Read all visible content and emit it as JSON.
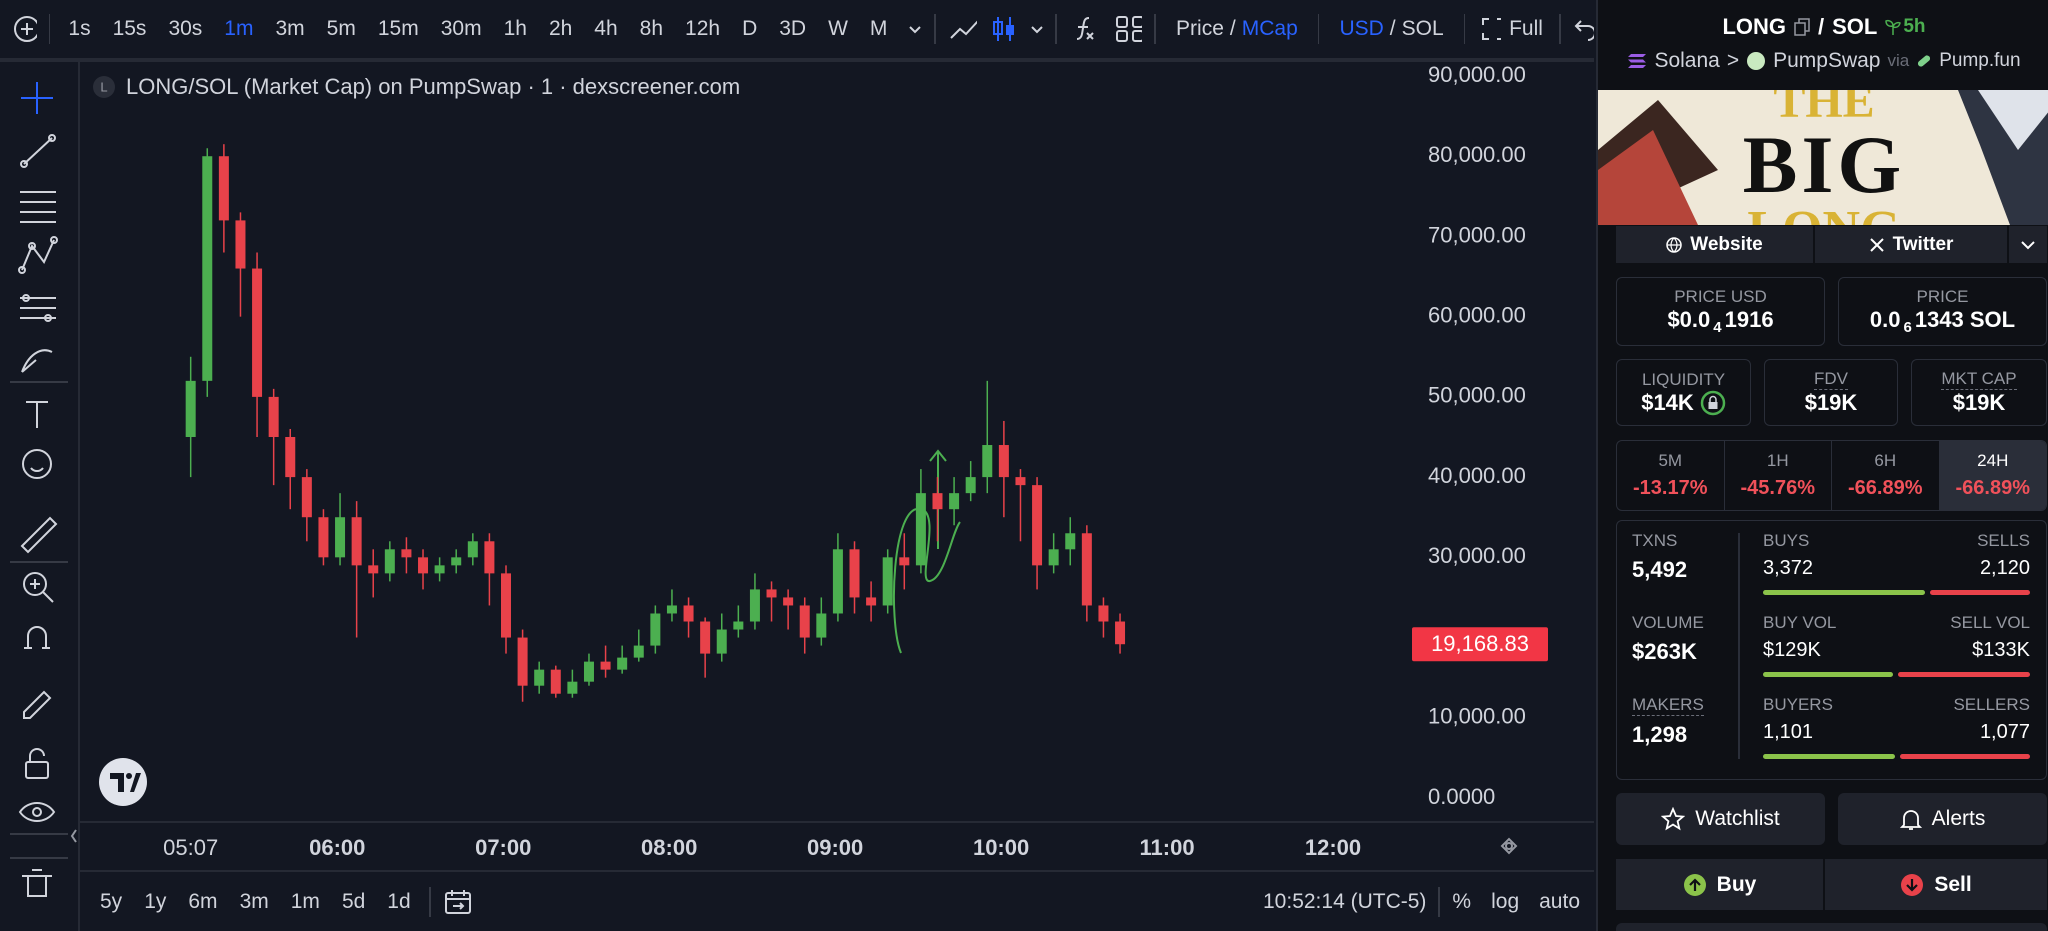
{
  "toolbar": {
    "intervals": [
      "1s",
      "15s",
      "30s",
      "1m",
      "3m",
      "5m",
      "15m",
      "30m",
      "1h",
      "2h",
      "4h",
      "8h",
      "12h",
      "D",
      "3D",
      "W",
      "M"
    ],
    "active_interval": "1m",
    "price_label": "Price",
    "price_sep": "/",
    "mcap_label": "MCap",
    "currency": "USD",
    "currency_sep": "/",
    "quote": "SOL",
    "full": "Full"
  },
  "chart_data": {
    "type": "candlestick",
    "title": "LONG/SOL (Market Cap) on PumpSwap · 1 · dexscreener.com",
    "symbol_badge": "L",
    "x": [
      "05:07",
      "05:13",
      "05:19",
      "05:25",
      "05:31",
      "05:37",
      "05:43",
      "05:49",
      "05:55",
      "06:01",
      "06:07",
      "06:13",
      "06:19",
      "06:25",
      "06:31",
      "06:37",
      "06:43",
      "06:49",
      "06:55",
      "07:01",
      "07:07",
      "07:13",
      "07:19",
      "07:25",
      "07:31",
      "07:37",
      "07:43",
      "07:49",
      "07:55",
      "08:01",
      "08:07",
      "08:13",
      "08:19",
      "08:25",
      "08:31",
      "08:37",
      "08:43",
      "08:49",
      "08:55",
      "09:01",
      "09:07",
      "09:13",
      "09:19",
      "09:25",
      "09:31",
      "09:37",
      "09:43",
      "09:49",
      "09:55",
      "10:01",
      "10:07",
      "10:13",
      "10:19",
      "10:25",
      "10:31",
      "10:37",
      "10:43"
    ],
    "open": [
      45000,
      52000,
      80000,
      72000,
      66000,
      50000,
      45000,
      40000,
      35000,
      30000,
      35000,
      29000,
      28000,
      31000,
      30000,
      28000,
      29000,
      30000,
      32000,
      28000,
      20000,
      14000,
      16000,
      13000,
      14500,
      17000,
      16000,
      17500,
      19000,
      23000,
      24000,
      22000,
      18000,
      21000,
      22000,
      26000,
      25000,
      24000,
      20000,
      23000,
      31000,
      25000,
      24000,
      30000,
      29000,
      38000,
      36000,
      38000,
      40000,
      44000,
      40000,
      39000,
      29000,
      31000,
      33000,
      24000,
      22000
    ],
    "high": [
      55000,
      81000,
      81500,
      73000,
      68000,
      51000,
      46000,
      41000,
      36000,
      38000,
      37000,
      31000,
      32000,
      32500,
      31000,
      30000,
      31000,
      33000,
      33000,
      29000,
      21000,
      17000,
      16500,
      16000,
      18000,
      19000,
      19000,
      21000,
      24000,
      26000,
      25000,
      22500,
      23000,
      24000,
      28000,
      27000,
      26000,
      25000,
      25000,
      33000,
      32000,
      27000,
      31000,
      33000,
      41000,
      40000,
      40000,
      42000,
      52000,
      47000,
      41000,
      40000,
      33000,
      35000,
      34000,
      25000,
      23000
    ],
    "low": [
      40000,
      50000,
      68000,
      60000,
      45000,
      39000,
      36000,
      32000,
      29000,
      29000,
      20000,
      25000,
      27000,
      28000,
      26000,
      27000,
      28000,
      29000,
      24000,
      18000,
      12000,
      13000,
      12500,
      12500,
      14000,
      15000,
      15500,
      17000,
      18000,
      22000,
      20000,
      15000,
      17000,
      20000,
      21000,
      22000,
      21000,
      18000,
      19000,
      22000,
      23000,
      22000,
      23000,
      26000,
      28000,
      32000,
      34000,
      37000,
      38000,
      35000,
      32000,
      26000,
      28000,
      29000,
      22000,
      20000,
      18000
    ],
    "close": [
      52000,
      80000,
      72000,
      66000,
      50000,
      45000,
      40000,
      35000,
      30000,
      35000,
      29000,
      28000,
      31000,
      30000,
      28000,
      29000,
      30000,
      32000,
      28000,
      20000,
      14000,
      16000,
      13000,
      14500,
      17000,
      16000,
      17500,
      19000,
      23000,
      24000,
      22000,
      18000,
      21000,
      22000,
      26000,
      25000,
      24000,
      20000,
      23000,
      31000,
      25000,
      24000,
      30000,
      29000,
      38000,
      36000,
      38000,
      40000,
      44000,
      40000,
      39000,
      29000,
      31000,
      33000,
      24000,
      22000,
      19168.83
    ],
    "up_color": "#4caf50",
    "down_color": "#e8424a",
    "grid": false,
    "xlim": [
      "04:40",
      "12:30"
    ],
    "xticks": [
      "05:07",
      "06:00",
      "07:00",
      "08:00",
      "09:00",
      "10:00",
      "11:00",
      "12:00"
    ],
    "ylim": [
      0,
      90000
    ],
    "yticks": [
      {
        "value": 0,
        "label": "0.0000"
      },
      {
        "value": 10000,
        "label": "10,000.00"
      },
      {
        "value": 30000,
        "label": "30,000.00"
      },
      {
        "value": 40000,
        "label": "40,000.00"
      },
      {
        "value": 50000,
        "label": "50,000.00"
      },
      {
        "value": 60000,
        "label": "60,000.00"
      },
      {
        "value": 70000,
        "label": "70,000.00"
      },
      {
        "value": 80000,
        "label": "80,000.00"
      },
      {
        "value": 90000,
        "label": "90,000.00"
      }
    ],
    "last_price": {
      "value": 19168.83,
      "label": "19,168.83"
    }
  },
  "bottom_bar": {
    "ranges": [
      "5y",
      "1y",
      "6m",
      "3m",
      "1m",
      "5d",
      "1d"
    ],
    "clock": "10:52:14 (UTC-5)",
    "percent": "%",
    "log": "log",
    "auto": "auto"
  },
  "panel": {
    "pair": {
      "base": "LONG",
      "sep": "/",
      "quote": "SOL",
      "age": "5h"
    },
    "route": {
      "chain": "Solana",
      "arrow": ">",
      "dex": "PumpSwap",
      "via": "via",
      "launchpad": "Pump.fun"
    },
    "banner": {
      "line1": "THE",
      "line2": "BIG",
      "line3": "LONG"
    },
    "links": {
      "website": "Website",
      "twitter": "Twitter"
    },
    "price_usd": {
      "label": "PRICE USD",
      "prefix": "$0.0",
      "zeros": "4",
      "digits": "1916"
    },
    "price_native": {
      "label": "PRICE",
      "prefix": "0.0",
      "zeros": "6",
      "digits": "1343 SOL"
    },
    "metrics": [
      {
        "label": "LIQUIDITY",
        "value": "$14K"
      },
      {
        "label": "FDV",
        "value": "$19K"
      },
      {
        "label": "MKT CAP",
        "value": "$19K"
      }
    ],
    "changes": [
      {
        "period": "5M",
        "value": "-13.17%"
      },
      {
        "period": "1H",
        "value": "-45.76%"
      },
      {
        "period": "6H",
        "value": "-66.89%"
      },
      {
        "period": "24H",
        "value": "-66.89%"
      }
    ],
    "active_period": "24H",
    "stats": {
      "txns": {
        "label": "TXNS",
        "value": "5,492"
      },
      "buys": {
        "label": "BUYS",
        "value": "3,372"
      },
      "sells": {
        "label": "SELLS",
        "value": "2,120"
      },
      "volume": {
        "label": "VOLUME",
        "value": "$263K"
      },
      "buy_vol": {
        "label": "BUY VOL",
        "value": "$129K"
      },
      "sell_vol": {
        "label": "SELL VOL",
        "value": "$133K"
      },
      "makers": {
        "label": "MAKERS",
        "value": "1,298"
      },
      "buyers": {
        "label": "BUYERS",
        "value": "1,101"
      },
      "sellers": {
        "label": "SELLERS",
        "value": "1,077"
      }
    },
    "actions": {
      "watchlist": "Watchlist",
      "alerts": "Alerts",
      "buy": "Buy",
      "sell": "Sell"
    }
  }
}
